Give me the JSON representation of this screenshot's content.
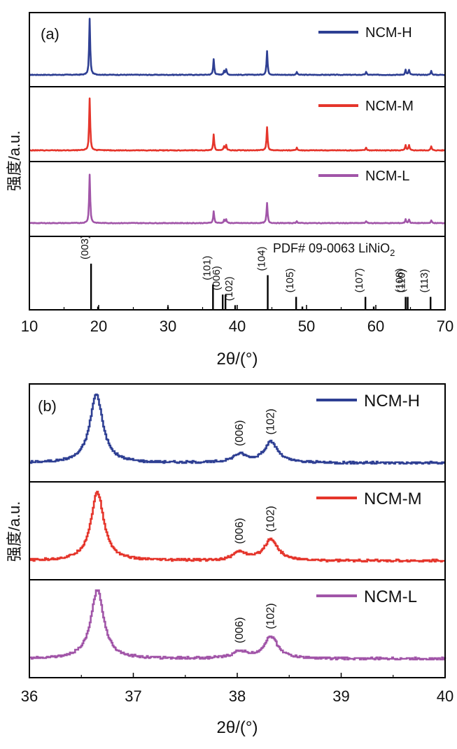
{
  "chart_data": [
    {
      "type": "line",
      "panel_label": "(a)",
      "xlabel": "2θ/(°)",
      "ylabel": "强度/a.u.",
      "xlim": [
        10,
        70
      ],
      "xticks": [
        "10",
        "20",
        "30",
        "40",
        "50",
        "60",
        "70"
      ],
      "series": [
        {
          "name": "NCM-H",
          "color": "#2E3F93",
          "baseline": 0.05,
          "peaks": [
            {
              "x": 18.7,
              "h": 1.0
            },
            {
              "x": 36.6,
              "h": 0.28
            },
            {
              "x": 38.1,
              "h": 0.07
            },
            {
              "x": 38.4,
              "h": 0.1
            },
            {
              "x": 44.3,
              "h": 0.42
            },
            {
              "x": 48.6,
              "h": 0.05
            },
            {
              "x": 58.6,
              "h": 0.05
            },
            {
              "x": 64.3,
              "h": 0.09
            },
            {
              "x": 64.8,
              "h": 0.09
            },
            {
              "x": 68.0,
              "h": 0.07
            }
          ]
        },
        {
          "name": "NCM-M",
          "color": "#E5352B",
          "baseline": 0.05,
          "peaks": [
            {
              "x": 18.7,
              "h": 0.93
            },
            {
              "x": 36.6,
              "h": 0.28
            },
            {
              "x": 38.1,
              "h": 0.07
            },
            {
              "x": 38.4,
              "h": 0.09
            },
            {
              "x": 44.3,
              "h": 0.41
            },
            {
              "x": 48.6,
              "h": 0.05
            },
            {
              "x": 58.6,
              "h": 0.05
            },
            {
              "x": 64.3,
              "h": 0.09
            },
            {
              "x": 64.8,
              "h": 0.09
            },
            {
              "x": 68.0,
              "h": 0.07
            }
          ]
        },
        {
          "name": "NCM-L",
          "color": "#A155A8",
          "baseline": 0.05,
          "peaks": [
            {
              "x": 18.7,
              "h": 0.93
            },
            {
              "x": 36.6,
              "h": 0.23
            },
            {
              "x": 38.1,
              "h": 0.06
            },
            {
              "x": 38.4,
              "h": 0.07
            },
            {
              "x": 44.3,
              "h": 0.38
            },
            {
              "x": 48.6,
              "h": 0.04
            },
            {
              "x": 58.6,
              "h": 0.04
            },
            {
              "x": 64.3,
              "h": 0.07
            },
            {
              "x": 64.8,
              "h": 0.07
            },
            {
              "x": 68.0,
              "h": 0.05
            }
          ]
        }
      ],
      "reference": {
        "title_prefix": "PDF# 09-0063 LiNiO",
        "title_subscript": "2",
        "sticks": [
          {
            "x": 18.9,
            "h": 1.0,
            "label": "(003)"
          },
          {
            "x": 19.9,
            "h": 0.07,
            "label": ""
          },
          {
            "x": 30.0,
            "h": 0.07,
            "label": ""
          },
          {
            "x": 36.5,
            "h": 0.55,
            "label": "(101)"
          },
          {
            "x": 37.9,
            "h": 0.33,
            "label": "(006)"
          },
          {
            "x": 38.3,
            "h": 0.33,
            "label": ""
          },
          {
            "x": 39.7,
            "h": 0.1,
            "label": "(102)"
          },
          {
            "x": 44.4,
            "h": 0.75,
            "label": "(104)"
          },
          {
            "x": 48.5,
            "h": 0.28,
            "label": "(105)"
          },
          {
            "x": 49.4,
            "h": 0.07,
            "label": ""
          },
          {
            "x": 58.5,
            "h": 0.28,
            "label": "(107)"
          },
          {
            "x": 59.7,
            "h": 0.07,
            "label": ""
          },
          {
            "x": 64.3,
            "h": 0.28,
            "label": "(108)"
          },
          {
            "x": 64.6,
            "h": 0.28,
            "label": "(110)"
          },
          {
            "x": 67.9,
            "h": 0.28,
            "label": "(113)"
          }
        ]
      }
    },
    {
      "type": "line",
      "panel_label": "(b)",
      "xlabel": "2θ/(°)",
      "ylabel": "强度/a.u.",
      "xlim": [
        36,
        40
      ],
      "xticks": [
        "36",
        "37",
        "38",
        "39",
        "40"
      ],
      "series": [
        {
          "name": "NCM-H",
          "color": "#2E3F93",
          "baseline": 0.0,
          "peaks": [
            {
              "x": 36.64,
              "h": 1.0,
              "w": 0.075
            },
            {
              "x": 38.02,
              "h": 0.12,
              "w": 0.08
            },
            {
              "x": 38.32,
              "h": 0.3,
              "w": 0.08
            }
          ],
          "peak_labels": [
            {
              "x": 38.02,
              "label": "(006)"
            },
            {
              "x": 38.32,
              "label": "(102)"
            }
          ]
        },
        {
          "name": "NCM-M",
          "color": "#E5352B",
          "baseline": 0.0,
          "peaks": [
            {
              "x": 36.65,
              "h": 1.0,
              "w": 0.075
            },
            {
              "x": 38.02,
              "h": 0.12,
              "w": 0.08
            },
            {
              "x": 38.32,
              "h": 0.31,
              "w": 0.08
            }
          ],
          "peak_labels": [
            {
              "x": 38.02,
              "label": "(006)"
            },
            {
              "x": 38.32,
              "label": "(102)"
            }
          ]
        },
        {
          "name": "NCM-L",
          "color": "#A155A8",
          "baseline": 0.0,
          "peaks": [
            {
              "x": 36.65,
              "h": 1.0,
              "w": 0.075
            },
            {
              "x": 38.02,
              "h": 0.1,
              "w": 0.08
            },
            {
              "x": 38.32,
              "h": 0.32,
              "w": 0.08
            }
          ],
          "peak_labels": [
            {
              "x": 38.02,
              "label": "(006)"
            },
            {
              "x": 38.32,
              "label": "(102)"
            }
          ]
        }
      ]
    }
  ]
}
